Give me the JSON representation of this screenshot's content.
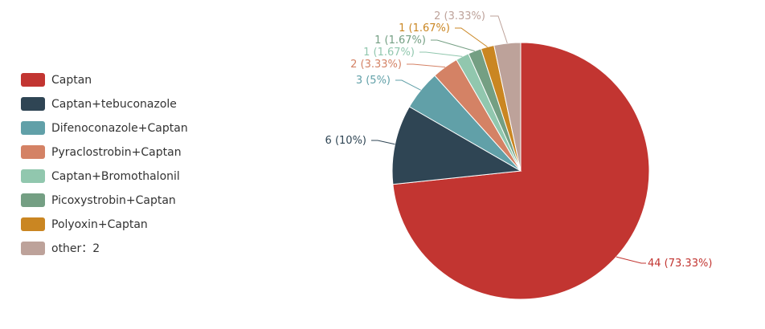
{
  "chart_data": {
    "type": "pie",
    "title": "",
    "legend": {
      "placement": "left"
    },
    "slices": [
      {
        "name": "Captan",
        "value": 44,
        "percent": "73.33%",
        "label": "44 (73.33%)",
        "color": "#c23531"
      },
      {
        "name": "Captan+tebuconazole",
        "value": 6,
        "percent": "10%",
        "label": "6 (10%)",
        "color": "#2f4554"
      },
      {
        "name": "Difenoconazole+Captan",
        "value": 3,
        "percent": "5%",
        "label": "3 (5%)",
        "color": "#61a0a8"
      },
      {
        "name": "Pyraclostrobin+Captan",
        "value": 2,
        "percent": "3.33%",
        "label": "2 (3.33%)",
        "color": "#d48265"
      },
      {
        "name": "Captan+Bromothalonil",
        "value": 1,
        "percent": "1.67%",
        "label": "1 (1.67%)",
        "color": "#91c7ae"
      },
      {
        "name": "Picoxystrobin+Captan",
        "value": 1,
        "percent": "1.67%",
        "label": "1 (1.67%)",
        "color": "#749f83"
      },
      {
        "name": "Polyoxin+Captan",
        "value": 1,
        "percent": "1.67%",
        "label": "1 (1.67%)",
        "color": "#ca8622"
      },
      {
        "name": "other：2",
        "value": 2,
        "percent": "3.33%",
        "label": "2 (3.33%)",
        "color": "#bda29a"
      }
    ]
  }
}
